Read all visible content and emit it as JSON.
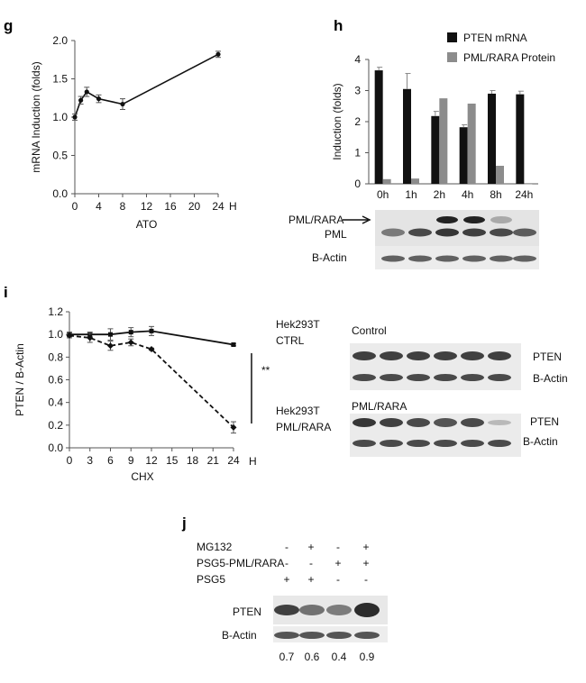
{
  "panels": {
    "g": "g",
    "h": "h",
    "i": "i",
    "j": "j"
  },
  "chart_data": [
    {
      "panel": "g",
      "type": "line",
      "xlabel": "ATO",
      "ylabel": "mRNA Induction (folds)",
      "x_unit": "H",
      "xticks": [
        0,
        4,
        8,
        12,
        16,
        20,
        24
      ],
      "yticks": [
        0.0,
        0.5,
        1.0,
        1.5,
        2.0
      ],
      "xlim": [
        0,
        24
      ],
      "ylim": [
        0,
        2
      ],
      "x": [
        0,
        1,
        2,
        4,
        8,
        24
      ],
      "y": [
        1.0,
        1.22,
        1.33,
        1.24,
        1.17,
        1.82
      ],
      "err": [
        0.04,
        0.05,
        0.06,
        0.05,
        0.07,
        0.04
      ]
    },
    {
      "panel": "h",
      "type": "bar",
      "ylabel": "Induction (folds)",
      "categories": [
        "0h",
        "1h",
        "2h",
        "4h",
        "8h",
        "24h"
      ],
      "yticks": [
        0,
        1,
        2,
        3,
        4
      ],
      "ylim": [
        0,
        4
      ],
      "series": [
        {
          "name": "PTEN mRNA",
          "color": "#111111",
          "values": [
            3.65,
            3.05,
            2.18,
            1.82,
            2.9,
            2.88
          ],
          "err": [
            0.1,
            0.5,
            0.15,
            0.08,
            0.1,
            0.1
          ]
        },
        {
          "name": "PML/RARA Protein",
          "color": "#8c8c8c",
          "values": [
            0.15,
            0.17,
            2.75,
            2.58,
            0.58,
            0.0
          ],
          "err": [
            0,
            0,
            0,
            0,
            0,
            0
          ]
        }
      ]
    },
    {
      "panel": "i",
      "type": "line",
      "xlabel": "CHX",
      "ylabel": "PTEN / B-Actin",
      "x_unit": "H",
      "xticks": [
        0,
        3,
        6,
        9,
        12,
        15,
        18,
        21,
        24
      ],
      "yticks": [
        0.0,
        0.2,
        0.4,
        0.6,
        0.8,
        1.0,
        1.2
      ],
      "xlim": [
        0,
        24
      ],
      "ylim": [
        0,
        1.2
      ],
      "series": [
        {
          "name": "Hek293T CTRL",
          "style": "solid",
          "x": [
            0,
            3,
            6,
            9,
            12,
            24
          ],
          "y": [
            1.0,
            1.0,
            1.0,
            1.02,
            1.03,
            0.91
          ],
          "err": [
            0.02,
            0.02,
            0.05,
            0.04,
            0.04,
            0.01
          ]
        },
        {
          "name": "Hek293T PML/RARA",
          "style": "dashed",
          "x": [
            0,
            3,
            6,
            9,
            12,
            24
          ],
          "y": [
            0.99,
            0.97,
            0.9,
            0.93,
            0.87,
            0.18
          ],
          "err": [
            0.02,
            0.04,
            0.04,
            0.03,
            0.01,
            0.05
          ]
        }
      ],
      "annotation": "**"
    }
  ],
  "g_axis": {
    "unit": "H"
  },
  "h_legend": [
    "PTEN mRNA",
    "PML/RARA Protein"
  ],
  "h_blot": {
    "labels": {
      "fusion": "PML/RARA",
      "pml": "PML",
      "actin": "B-Actin"
    },
    "arrow": "→"
  },
  "i_labels": {
    "ctrl": [
      "Hek293T",
      "CTRL"
    ],
    "pml": [
      "Hek293T",
      "PML/RARA"
    ],
    "sig": "**",
    "xunit": "H"
  },
  "i_blots": {
    "control_title": "Control",
    "pml_title": "PML/RARA",
    "pten": "PTEN",
    "actin": "B-Actin"
  },
  "j": {
    "rows": [
      {
        "label": "MG132",
        "signs": [
          "-",
          "+",
          "-",
          "+"
        ]
      },
      {
        "label": "PSG5-PML/RARA",
        "signs": [
          "-",
          "-",
          "+",
          "+"
        ]
      },
      {
        "label": "PSG5",
        "signs": [
          "+",
          "+",
          "-",
          "-"
        ]
      }
    ],
    "blot_labels": {
      "pten": "PTEN",
      "actin": "B-Actin"
    },
    "quant": [
      "0.7",
      "0.6",
      "0.4",
      "0.9"
    ]
  }
}
